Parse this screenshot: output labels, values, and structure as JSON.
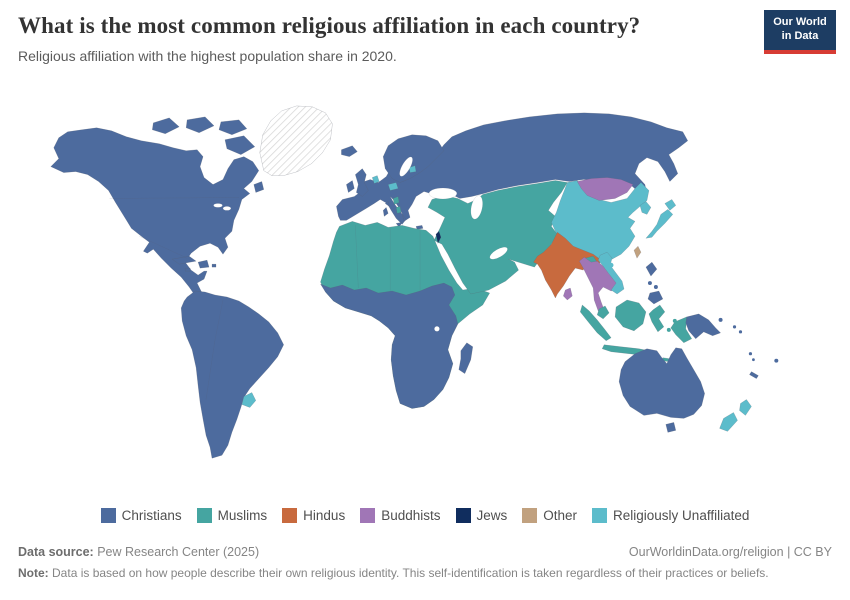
{
  "header": {
    "title": "What is the most common religious affiliation in each country?",
    "subtitle": "Religious affiliation with the highest population share in 2020.",
    "logo": {
      "line1": "Our World",
      "line2": "in Data",
      "bg_color": "#1d3d63",
      "accent_color": "#d73c34"
    }
  },
  "legend": {
    "items": [
      {
        "key": "christians",
        "label": "Christians",
        "color": "#4d6b9e"
      },
      {
        "key": "muslims",
        "label": "Muslims",
        "color": "#45a5a1"
      },
      {
        "key": "hindus",
        "label": "Hindus",
        "color": "#c86a3e"
      },
      {
        "key": "buddhists",
        "label": "Buddhists",
        "color": "#a076b6"
      },
      {
        "key": "jews",
        "label": "Jews",
        "color": "#102d5e"
      },
      {
        "key": "other",
        "label": "Other",
        "color": "#c1a17f"
      },
      {
        "key": "unaffiliated",
        "label": "Religiously Unaffiliated",
        "color": "#5cbccb"
      }
    ]
  },
  "map": {
    "no_data_regions": [
      "Greenland"
    ],
    "ocean_color": "#ffffff",
    "no_data_stripe_color": "#d9d9d9"
  },
  "footer": {
    "data_source_label": "Data source:",
    "data_source_value": "Pew Research Center (2025)",
    "link": "OurWorldinData.org/religion | CC BY",
    "note_label": "Note:",
    "note_value": "Data is based on how people describe their own religious identity. This self-identification is taken regardless of their practices or beliefs."
  },
  "chart_data": {
    "type": "choropleth-map",
    "title": "What is the most common religious affiliation in each country?",
    "subtitle": "Religious affiliation with the highest population share in 2020.",
    "year": 2020,
    "categories": [
      "Christians",
      "Muslims",
      "Hindus",
      "Buddhists",
      "Jews",
      "Other",
      "Religiously Unaffiliated"
    ],
    "category_colors": [
      "#4d6b9e",
      "#45a5a1",
      "#c86a3e",
      "#a076b6",
      "#102d5e",
      "#c1a17f",
      "#5cbccb"
    ],
    "legend_position": "bottom",
    "assignments": {
      "Christians": [
        "United States",
        "Canada",
        "Mexico",
        "Central America",
        "Caribbean",
        "South America (except Uruguay)",
        "Europe (most countries)",
        "Russia",
        "Sub-Saharan Africa (most)",
        "Ethiopia",
        "Madagascar",
        "Philippines",
        "Papua New Guinea",
        "Australia",
        "Pacific islands"
      ],
      "Muslims": [
        "North Africa",
        "Sahel",
        "Somalia",
        "Middle East",
        "Turkey",
        "Caucasus",
        "Kazakhstan",
        "Central Asia",
        "Iran",
        "Afghanistan",
        "Pakistan",
        "Bangladesh",
        "Malaysia",
        "Indonesia",
        "Albania",
        "Bosnia and Herzegovina"
      ],
      "Hindus": [
        "India",
        "Nepal"
      ],
      "Buddhists": [
        "Mongolia",
        "Myanmar",
        "Thailand",
        "Laos",
        "Cambodia",
        "Sri Lanka",
        "Bhutan"
      ],
      "Jews": [
        "Israel"
      ],
      "Other": [
        "Taiwan"
      ],
      "Religiously Unaffiliated": [
        "China",
        "Japan",
        "North Korea",
        "South Korea",
        "Vietnam",
        "Czechia",
        "Estonia",
        "Netherlands",
        "Uruguay",
        "New Zealand"
      ]
    },
    "no_data": [
      "Greenland"
    ]
  }
}
